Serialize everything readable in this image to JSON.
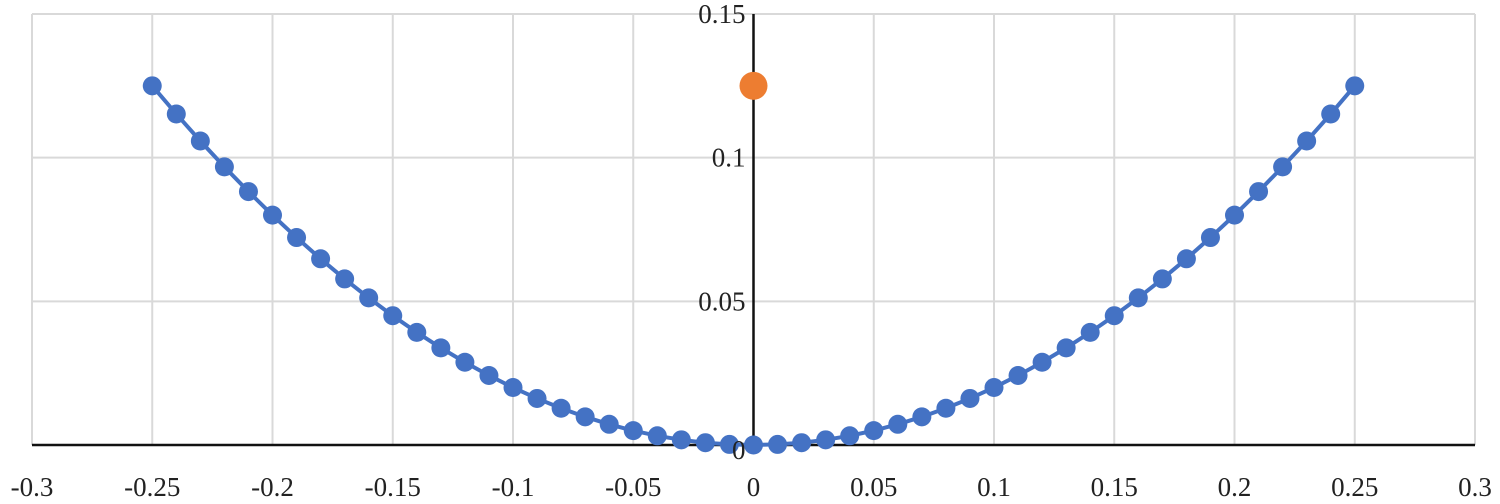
{
  "chart_data": {
    "type": "scatter",
    "title": "",
    "xlabel": "",
    "ylabel": "",
    "xlim": [
      -0.3,
      0.3
    ],
    "ylim": [
      0,
      0.15
    ],
    "x_ticks": [
      -0.3,
      -0.25,
      -0.2,
      -0.15,
      -0.1,
      -0.05,
      0,
      0.05,
      0.1,
      0.15,
      0.2,
      0.25,
      0.3
    ],
    "x_tick_labels": [
      "-0.3",
      "-0.25",
      "-0.2",
      "-0.15",
      "-0.1",
      "-0.05",
      "0",
      "0.05",
      "0.1",
      "0.15",
      "0.2",
      "0.25",
      "0.3"
    ],
    "y_ticks": [
      0.05,
      0.1,
      0.15
    ],
    "y_tick_labels": [
      "0.05",
      "0.1",
      "0.15"
    ],
    "y_zero_label": "0",
    "grid": true,
    "legend": "none",
    "series": [
      {
        "color": "#4472C4",
        "style": "line-with-markers",
        "x": [
          -0.25,
          -0.24,
          -0.23,
          -0.22,
          -0.21,
          -0.2,
          -0.19,
          -0.18,
          -0.17,
          -0.16,
          -0.15,
          -0.14,
          -0.13,
          -0.12,
          -0.11,
          -0.1,
          -0.09,
          -0.08,
          -0.07,
          -0.06,
          -0.05,
          -0.04,
          -0.03,
          -0.02,
          -0.01,
          0,
          0.01,
          0.02,
          0.03,
          0.04,
          0.05,
          0.06,
          0.07,
          0.08,
          0.09,
          0.1,
          0.11,
          0.12,
          0.13,
          0.14,
          0.15,
          0.16,
          0.17,
          0.18,
          0.19,
          0.2,
          0.21,
          0.22,
          0.23,
          0.24,
          0.25
        ],
        "y": [
          0.125,
          0.1152,
          0.1058,
          0.0968,
          0.0882,
          0.08,
          0.0722,
          0.0648,
          0.0578,
          0.0512,
          0.045,
          0.0392,
          0.0338,
          0.0288,
          0.0242,
          0.02,
          0.0162,
          0.0128,
          0.0098,
          0.0072,
          0.005,
          0.0032,
          0.0018,
          0.0008,
          0.0002,
          0,
          0.0002,
          0.0008,
          0.0018,
          0.0032,
          0.005,
          0.0072,
          0.0098,
          0.0128,
          0.0162,
          0.02,
          0.0242,
          0.0288,
          0.0338,
          0.0392,
          0.045,
          0.0512,
          0.0578,
          0.0648,
          0.0722,
          0.08,
          0.0882,
          0.0968,
          0.1058,
          0.1152,
          0.125
        ]
      },
      {
        "color": "#ED7D31",
        "style": "marker",
        "x": [
          0
        ],
        "y": [
          0.125
        ]
      }
    ]
  }
}
